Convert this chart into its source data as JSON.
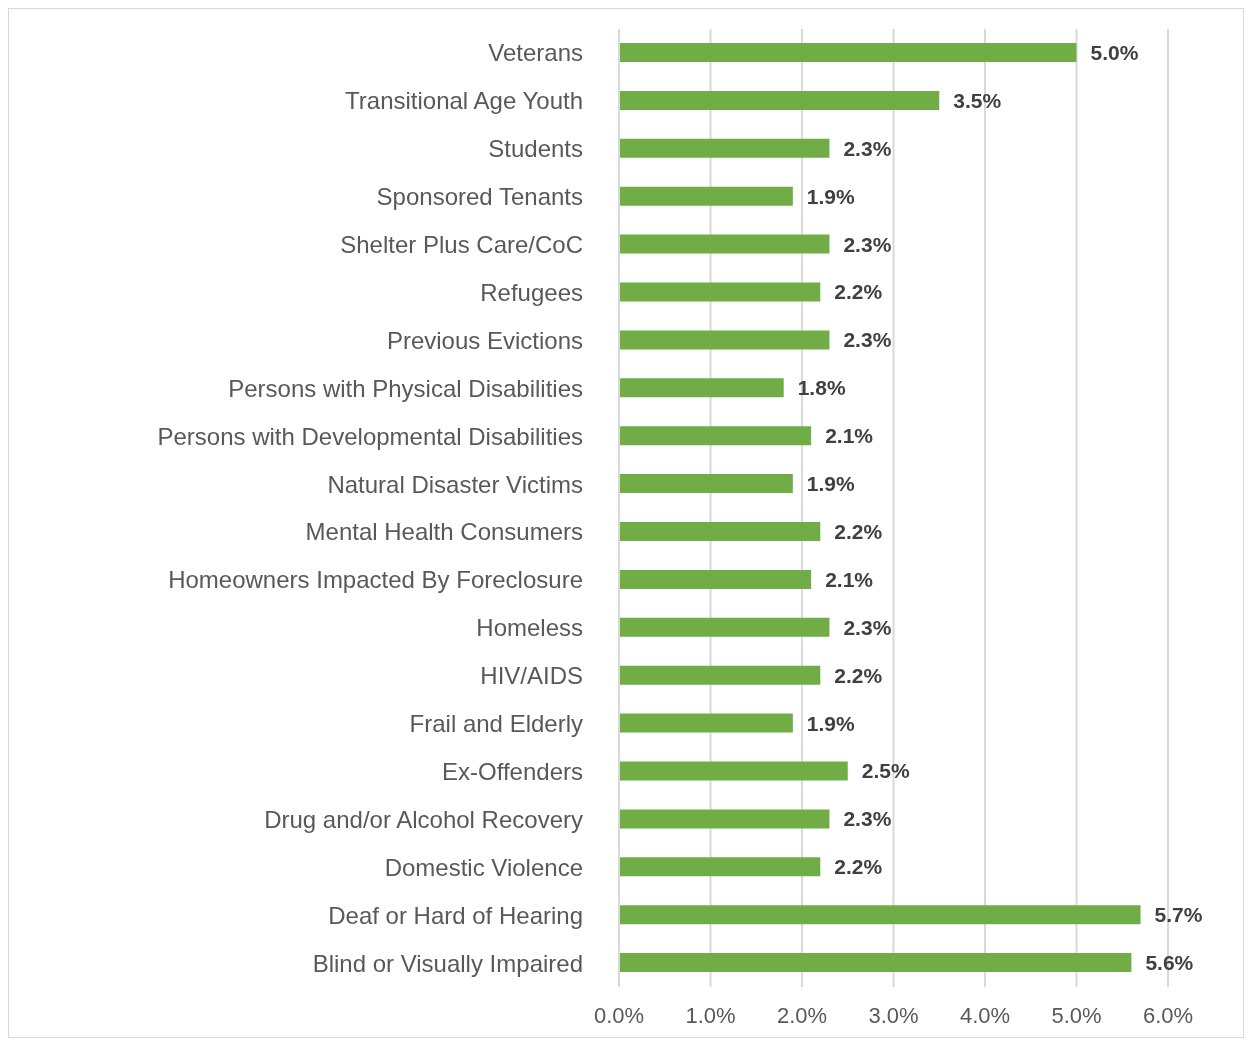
{
  "chart_data": {
    "type": "bar",
    "orientation": "horizontal",
    "categories": [
      "Veterans",
      "Transitional Age Youth",
      "Students",
      "Sponsored Tenants",
      "Shelter Plus Care/CoC",
      "Refugees",
      "Previous Evictions",
      "Persons with Physical Disabilities",
      "Persons with Developmental Disabilities",
      "Natural Disaster Victims",
      "Mental Health Consumers",
      "Homeowners Impacted By Foreclosure",
      "Homeless",
      "HIV/AIDS",
      "Frail and Elderly",
      "Ex-Offenders",
      "Drug and/or Alcohol Recovery",
      "Domestic Violence",
      "Deaf or Hard of Hearing",
      "Blind or Visually Impaired"
    ],
    "values": [
      5.0,
      3.5,
      2.3,
      1.9,
      2.3,
      2.2,
      2.3,
      1.8,
      2.1,
      1.9,
      2.2,
      2.1,
      2.3,
      2.2,
      1.9,
      2.5,
      2.3,
      2.2,
      5.7,
      5.6
    ],
    "value_labels": [
      "5.0%",
      "3.5%",
      "2.3%",
      "1.9%",
      "2.3%",
      "2.2%",
      "2.3%",
      "1.8%",
      "2.1%",
      "1.9%",
      "2.2%",
      "2.1%",
      "2.3%",
      "2.2%",
      "1.9%",
      "2.5%",
      "2.3%",
      "2.2%",
      "5.7%",
      "5.6%"
    ],
    "color": "#70ad47",
    "xlim": [
      0,
      6
    ],
    "xticks": [
      {
        "value": 0,
        "label": "0.0%"
      },
      {
        "value": 1,
        "label": "1.0%"
      },
      {
        "value": 2,
        "label": "2.0%"
      },
      {
        "value": 3,
        "label": "3.0%"
      },
      {
        "value": 4,
        "label": "4.0%"
      },
      {
        "value": 5,
        "label": "5.0%"
      },
      {
        "value": 6,
        "label": "6.0%"
      }
    ],
    "grid": "x",
    "legend": false
  }
}
